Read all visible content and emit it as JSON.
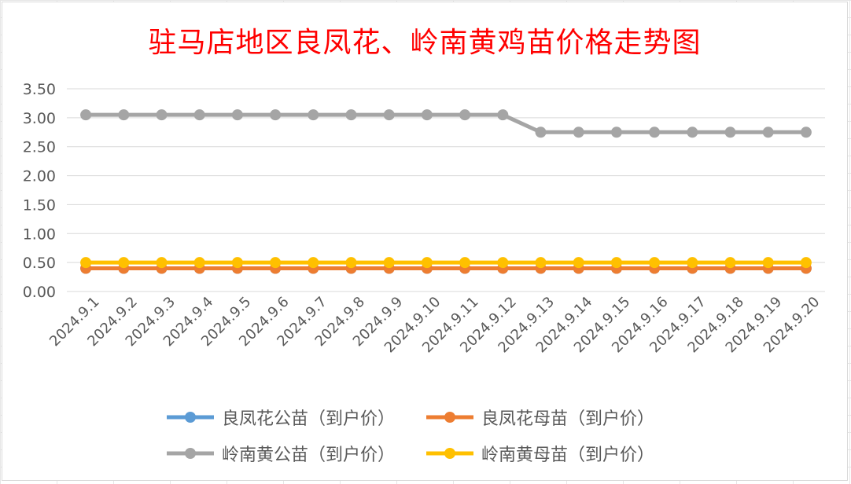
{
  "chart_data": {
    "type": "line",
    "title": "驻马店地区良凤花、岭南黄鸡苗价格走势图",
    "xlabel": "",
    "ylabel": "",
    "ylim": [
      0,
      3.5
    ],
    "yticks": [
      "0.00",
      "0.50",
      "1.00",
      "1.50",
      "2.00",
      "2.50",
      "3.00",
      "3.50"
    ],
    "grid": true,
    "legend_position": "bottom",
    "categories": [
      "2024.9.1",
      "2024.9.2",
      "2024.9.3",
      "2024.9.4",
      "2024.9.5",
      "2024.9.6",
      "2024.9.7",
      "2024.9.8",
      "2024.9.9",
      "2024.9.10",
      "2024.9.11",
      "2024.9.12",
      "2024.9.13",
      "2024.9.14",
      "2024.9.15",
      "2024.9.16",
      "2024.9.17",
      "2024.9.18",
      "2024.9.19",
      "2024.9.20"
    ],
    "series": [
      {
        "name": "良凤花公苗（到户价）",
        "color": "#5b9bd5",
        "values": [
          0.4,
          0.4,
          0.4,
          0.4,
          0.4,
          0.4,
          0.4,
          0.4,
          0.4,
          0.4,
          0.4,
          0.4,
          0.4,
          0.4,
          0.4,
          0.4,
          0.4,
          0.4,
          0.4,
          0.4
        ]
      },
      {
        "name": "良凤花母苗（到户价）",
        "color": "#ed7d31",
        "values": [
          0.4,
          0.4,
          0.4,
          0.4,
          0.4,
          0.4,
          0.4,
          0.4,
          0.4,
          0.4,
          0.4,
          0.4,
          0.4,
          0.4,
          0.4,
          0.4,
          0.4,
          0.4,
          0.4,
          0.4
        ]
      },
      {
        "name": "岭南黄公苗（到户价）",
        "color": "#a5a5a5",
        "values": [
          3.05,
          3.05,
          3.05,
          3.05,
          3.05,
          3.05,
          3.05,
          3.05,
          3.05,
          3.05,
          3.05,
          3.05,
          2.75,
          2.75,
          2.75,
          2.75,
          2.75,
          2.75,
          2.75,
          2.75
        ]
      },
      {
        "name": "岭南黄母苗（到户价）",
        "color": "#ffc000",
        "values": [
          0.5,
          0.5,
          0.5,
          0.5,
          0.5,
          0.5,
          0.5,
          0.5,
          0.5,
          0.5,
          0.5,
          0.5,
          0.5,
          0.5,
          0.5,
          0.5,
          0.5,
          0.5,
          0.5,
          0.5
        ]
      }
    ]
  }
}
